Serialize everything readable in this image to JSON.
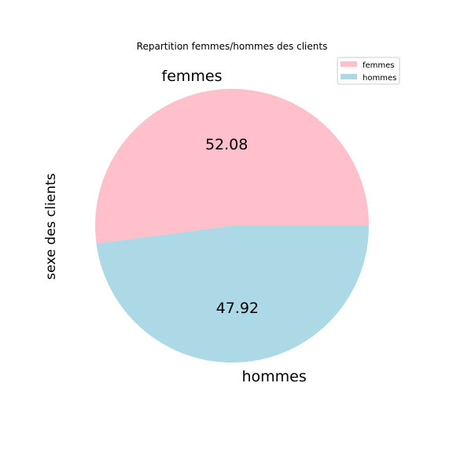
{
  "chart_data": {
    "type": "pie",
    "title": "Repartition femmes/hommes des clients",
    "ylabel": "sexe des clients",
    "categories": [
      "femmes",
      "hommes"
    ],
    "values": [
      52.08,
      47.92
    ],
    "value_labels": [
      "52.08",
      "47.92"
    ],
    "colors": [
      "#ffc0cb",
      "#add8e6"
    ],
    "start_angle": "0 (3 o'clock), counter-clockwise",
    "legend": {
      "placement": "top-right",
      "entries": [
        "femmes",
        "hommes"
      ]
    }
  }
}
